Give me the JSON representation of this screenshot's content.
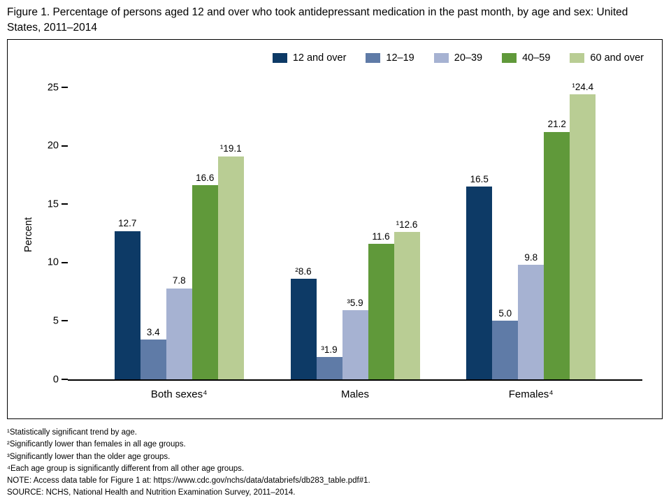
{
  "title": "Figure 1. Percentage of persons aged 12 and over who took antidepressant medication in the past month, by age and sex: United States, 2011–2014",
  "chart_data": {
    "type": "bar",
    "title": "Percentage of persons aged 12 and over who took antidepressant medication in the past month, by age and sex: United States, 2011–2014",
    "categories": [
      "Both sexes⁴",
      "Males",
      "Females⁴"
    ],
    "series": [
      {
        "name": "12 and over",
        "color": "#0d3a66",
        "values": [
          12.7,
          8.6,
          16.5
        ],
        "labels": [
          "12.7",
          "²8.6",
          "16.5"
        ]
      },
      {
        "name": "12–19",
        "color": "#5f7ba7",
        "values": [
          3.4,
          1.9,
          5.0
        ],
        "labels": [
          "3.4",
          "³1.9",
          "5.0"
        ]
      },
      {
        "name": "20–39",
        "color": "#a6b2d2",
        "values": [
          7.8,
          5.9,
          9.8
        ],
        "labels": [
          "7.8",
          "³5.9",
          "9.8"
        ]
      },
      {
        "name": "40–59",
        "color": "#60993a",
        "values": [
          16.6,
          11.6,
          21.2
        ],
        "labels": [
          "16.6",
          "11.6",
          "21.2"
        ]
      },
      {
        "name": "60 and over",
        "color": "#b9cd94",
        "values": [
          19.1,
          12.6,
          24.4
        ],
        "labels": [
          "¹19.1",
          "¹12.6",
          "¹24.4"
        ]
      }
    ],
    "xlabel": "",
    "ylabel": "Percent",
    "ylim": [
      0,
      25
    ],
    "yticks": [
      25,
      20,
      15,
      10,
      5,
      0
    ],
    "grid": false,
    "legend_position": "top-right"
  },
  "footnotes": [
    "¹Statistically significant trend by age.",
    "²Significantly lower than females in all age groups.",
    "³Significantly lower than the older age groups.",
    "⁴Each age group is significantly different from all other age groups.",
    "NOTE: Access data table for Figure 1 at: https://www.cdc.gov/nchs/data/databriefs/db283_table.pdf#1.",
    "SOURCE: NCHS, National Health and Nutrition Examination Survey, 2011–2014."
  ]
}
